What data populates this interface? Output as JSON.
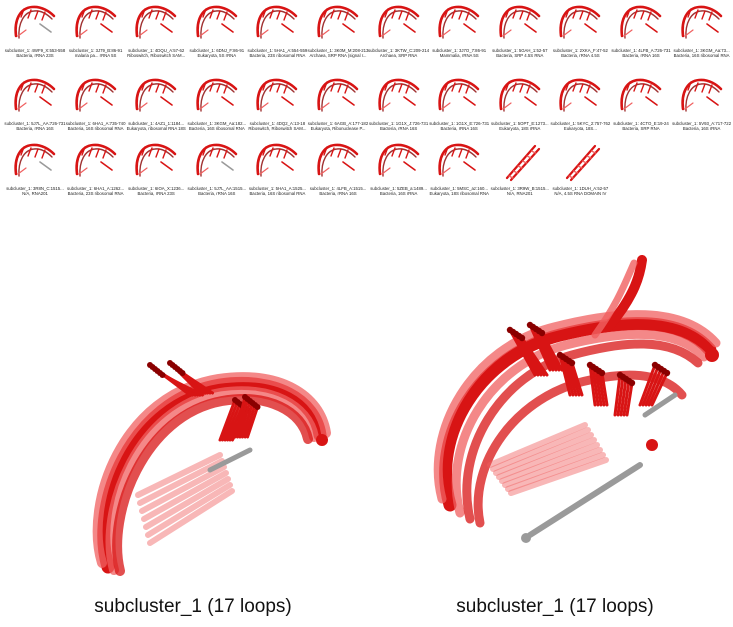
{
  "thumbnails": [
    {
      "line1": "subcluster_1: 4WF9_X:553-558",
      "line2": "Bacteria, rRNA 23S",
      "tail": "grey"
    },
    {
      "line1": "subcluster_1: 3J79_B:86-91",
      "line2": "malaria pa... rRNA 5S",
      "tail": "red"
    },
    {
      "line1": "subcluster_1: 4DQU_A:57-62",
      "line2": "Riboswitch, Riboswitch SAM...",
      "tail": "red"
    },
    {
      "line1": "subcluster_1: 6DNJ_F:86-91",
      "line2": "Eukaryota, 5S rRNA",
      "tail": "red"
    },
    {
      "line1": "subcluster_1: 5HA1_A:554-559",
      "line2": "Bacteria, 23S ribosomal RNA",
      "tail": "red"
    },
    {
      "line1": "subcluster_1: 3K0M_M:208-213",
      "line2": "Archaea, SRP RNA (signal r...",
      "tail": "red"
    },
    {
      "line1": "subcluster_1: 3KTW_C:209-214",
      "line2": "Archaea, SRP RNA",
      "tail": "red"
    },
    {
      "line1": "subcluster_1: 3J7O_7:86-91",
      "line2": "Mammalia, rRNA 5S",
      "tail": "red"
    },
    {
      "line1": "subcluster_1: 5GAH_1:52-57",
      "line2": "Bacteria, SRP 4.5S RNA",
      "tail": "red"
    },
    {
      "line1": "subcluster_1: 2XKA_F:47-52",
      "line2": "Bacteria, rRNA 4.5S",
      "tail": "red"
    },
    {
      "line1": "subcluster_1: 4LFB_A:726-731",
      "line2": "Bacteria, rRNA 16S",
      "tail": "red"
    },
    {
      "line1": "subcluster_1: 3KGM_Aa:73...",
      "line2": "Bacteria, 16S ribosomal RNA",
      "tail": "red"
    },
    {
      "line1": "subcluster_1: 5J7L_AA:726-731",
      "line2": "Bacteria, rRNA 16S",
      "tail": "red"
    },
    {
      "line1": "subcluster_1: 6HA1_A:735-740",
      "line2": "Bacteria, 16S ribosomal RNA",
      "tail": "red"
    },
    {
      "line1": "subcluster_1: 4AZ1_1:1184...",
      "line2": "Eukaryota, ribosomal RNA 18S",
      "tail": "red"
    },
    {
      "line1": "subcluster_1: 3KGM_Aa:182...",
      "line2": "Bacteria, 16S ribosomal RNA",
      "tail": "red"
    },
    {
      "line1": "subcluster_1: 4DQ2_A:13-18",
      "line2": "Riboswitch, Riboswitch SAM...",
      "tail": "red"
    },
    {
      "line1": "subcluster_1: 6AGB_A:177-182",
      "line2": "Eukaryota, Ribonuclease P...",
      "tail": "red"
    },
    {
      "line1": "subcluster_1: 1G1X_J:726-731",
      "line2": "Bacteria, rRNA 16S",
      "tail": "red"
    },
    {
      "line1": "subcluster_1: 1G1X_E:726-731",
      "line2": "Bacteria, rRNA 16S",
      "tail": "red"
    },
    {
      "line1": "subcluster_1: 5OPT_E:1273...",
      "line2": "Eukaryota, 18S rRNA",
      "tail": "red"
    },
    {
      "line1": "subcluster_1: 5KYC_2:757-762",
      "line2": "Eukaryota, 18S...",
      "tail": "red"
    },
    {
      "line1": "subcluster_1: 4CTO_E:19-24",
      "line2": "Bacteria, SRP RNA",
      "tail": "red"
    },
    {
      "line1": "subcluster_1: 5V93_A:717-722",
      "line2": "Bacteria, 16S rRNA",
      "tail": "red"
    },
    {
      "line1": "subcluster_1: 3R8N_C:1515...",
      "line2": "N/A, RNA201",
      "tail": "grey"
    },
    {
      "line1": "subcluster_1: 6HA1_A:1262...",
      "line2": "Bacteria, 23S ribosomal RNA",
      "tail": "red"
    },
    {
      "line1": "subcluster_1: 6IOA_X:1236...",
      "line2": "Bacteria, rRNA 23S",
      "tail": "red"
    },
    {
      "line1": "subcluster_1: 5J7L_AA:1515...",
      "line2": "Bacteria, rRNA 16S",
      "tail": "grey"
    },
    {
      "line1": "subcluster_1: 5HA1_A:1525...",
      "line2": "Bacteria, 16S ribosomal RNA",
      "tail": "red"
    },
    {
      "line1": "subcluster_1: 4LFB_A:1515...",
      "line2": "Bacteria, rRNA 16S",
      "tail": "red"
    },
    {
      "line1": "subcluster_1: 5ZEB_a:1489...",
      "line2": "Bacteria, 16S rRNA",
      "tail": "red"
    },
    {
      "line1": "subcluster_1: 5MSC_az:160...",
      "line2": "Eukaryota, 18S ribosomal RNA",
      "tail": "red"
    },
    {
      "line1": "subcluster_1: 3R9W_B:1515...",
      "line2": "N/A, RNA201",
      "tail": "red"
    },
    {
      "line1": "subcluster_1: 1DUH_A:52-57",
      "line2": "N/A, 4.5S RNA DOMAIN IV",
      "tail": "red"
    }
  ],
  "panels": [
    {
      "caption": "subcluster_1 (17 loops)"
    },
    {
      "caption": "subcluster_1 (17 loops)"
    }
  ],
  "colors": {
    "rna_red": "#d81414",
    "rna_light": "#f06060",
    "rna_dark": "#8a0000",
    "tail_grey": "#9a9a9a"
  }
}
